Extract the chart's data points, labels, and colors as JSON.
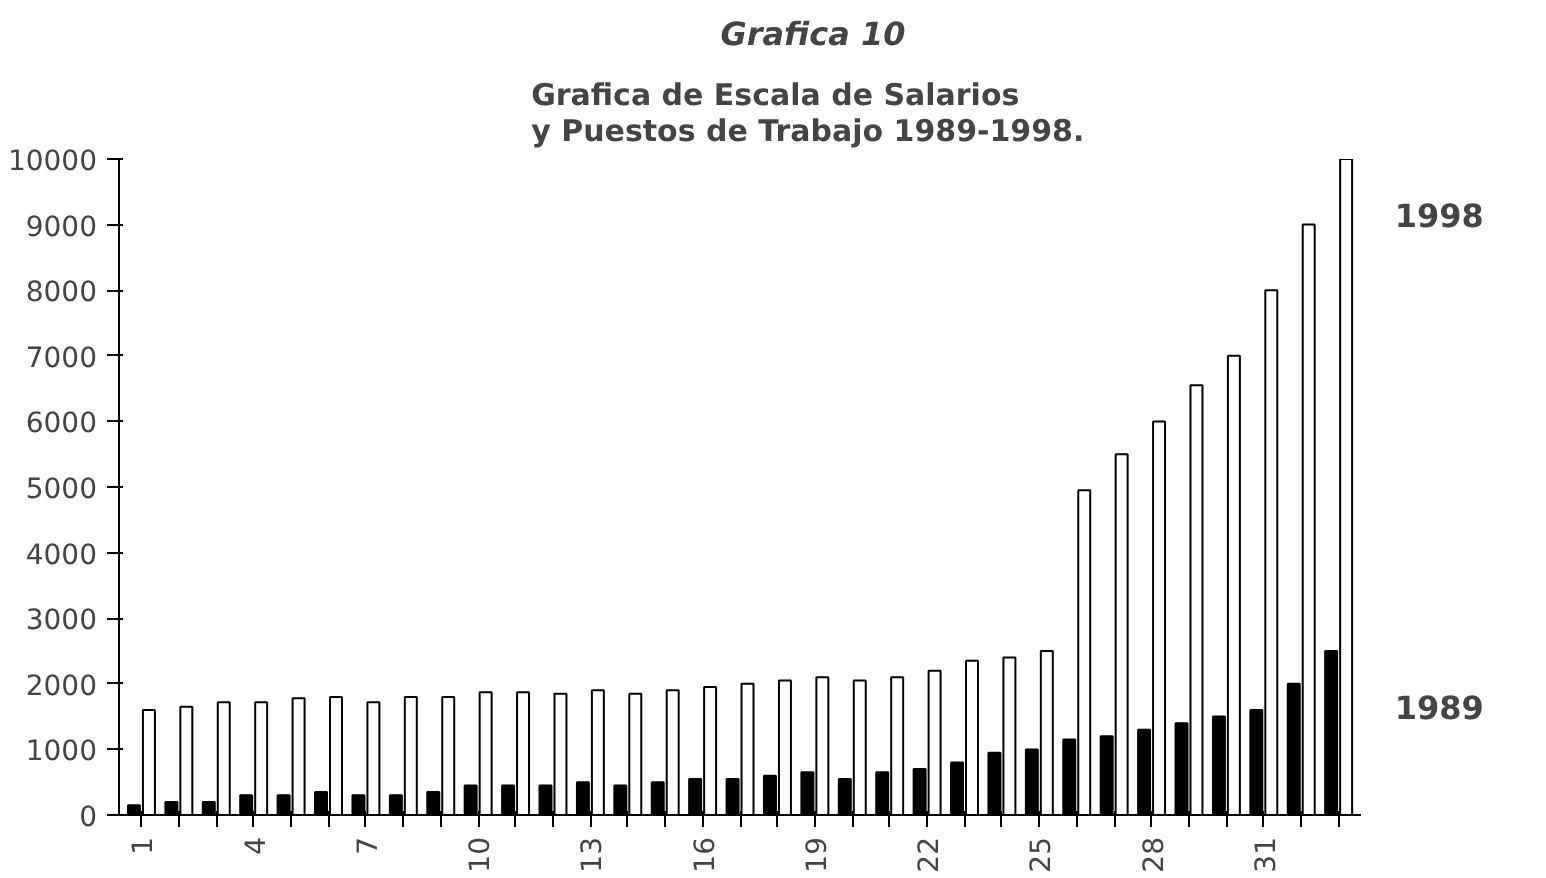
{
  "chart_data": {
    "type": "bar",
    "title": "Grafica 10",
    "subtitle": "Grafica de Escala de Salarios\ny Puestos de Trabajo  1989-1998.",
    "categories": [
      "1",
      null,
      null,
      "4",
      null,
      null,
      "7",
      null,
      null,
      "10",
      null,
      null,
      "13",
      null,
      null,
      "16",
      null,
      null,
      "19",
      null,
      null,
      "22",
      null,
      null,
      "25",
      null,
      null,
      "28",
      null,
      null,
      "31",
      null,
      null
    ],
    "series": [
      {
        "name": "1989",
        "color": "#000000",
        "values": [
          150,
          200,
          200,
          300,
          300,
          350,
          300,
          300,
          350,
          450,
          450,
          450,
          500,
          450,
          500,
          550,
          550,
          600,
          650,
          550,
          650,
          700,
          800,
          950,
          1000,
          1150,
          1200,
          1300,
          1400,
          1500,
          1600,
          2000,
          2500
        ]
      },
      {
        "name": "1998",
        "color": "#ffffff",
        "values": [
          1600,
          1650,
          1720,
          1720,
          1780,
          1800,
          1720,
          1800,
          1800,
          1870,
          1870,
          1850,
          1900,
          1850,
          1900,
          1950,
          2000,
          2050,
          2100,
          2050,
          2100,
          2200,
          2350,
          2400,
          2500,
          4950,
          5500,
          6000,
          6550,
          7000,
          8000,
          9000,
          10000
        ]
      }
    ],
    "ylim": [
      0,
      10000
    ],
    "yticks": [
      0,
      1000,
      2000,
      3000,
      4000,
      5000,
      6000,
      7000,
      8000,
      9000,
      10000
    ],
    "grid": false
  }
}
